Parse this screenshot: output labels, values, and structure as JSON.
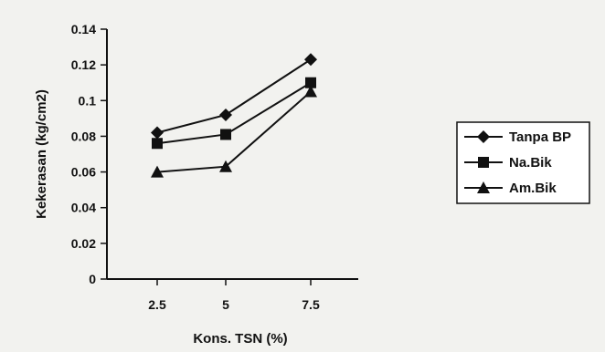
{
  "chart_data": {
    "type": "line",
    "title": "",
    "xlabel": "Kons. TSN (%)",
    "ylabel": "Kekerasan (kg/cm2)",
    "categories": [
      "2.5",
      "5",
      "7.5"
    ],
    "ylim": [
      0,
      0.14
    ],
    "yticks": [
      "0",
      "0.02",
      "0.04",
      "0.06",
      "0.08",
      "0.1",
      "0.12",
      "0.14"
    ],
    "legend_position": "right",
    "grid": false,
    "series": [
      {
        "name": "Tanpa BP",
        "marker": "diamond",
        "values": [
          0.082,
          0.092,
          0.123
        ]
      },
      {
        "name": "Na.Bik",
        "marker": "square",
        "values": [
          0.076,
          0.081,
          0.11
        ]
      },
      {
        "name": "Am.Bik",
        "marker": "triangle",
        "values": [
          0.06,
          0.063,
          0.105
        ]
      }
    ]
  },
  "colors": {
    "ink": "#111111",
    "background": "#f2f2ef"
  }
}
